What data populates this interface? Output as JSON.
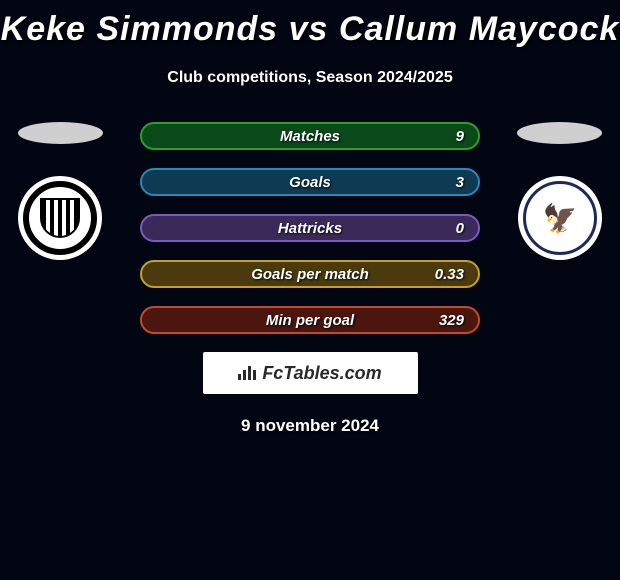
{
  "title": "Keke Simmonds vs Callum Maycock",
  "subtitle": "Club competitions, Season 2024/2025",
  "date": "9 november 2024",
  "fctables_label": "FcTables.com",
  "background_color": "#020612",
  "stats": [
    {
      "label": "Matches",
      "value": "9",
      "fill": "#0a4a1a",
      "border": "#2aa02a"
    },
    {
      "label": "Goals",
      "value": "3",
      "fill": "#0e3a52",
      "border": "#2a88bb"
    },
    {
      "label": "Hattricks",
      "value": "0",
      "fill": "#3a2a5a",
      "border": "#7a5abb"
    },
    {
      "label": "Goals per match",
      "value": "0.33",
      "fill": "#4a3a0e",
      "border": "#c4a126"
    },
    {
      "label": "Min per goal",
      "value": "329",
      "fill": "#4a160e",
      "border": "#c44a2a"
    }
  ],
  "left_oval_color": "#cfcfcf",
  "right_oval_color": "#cfcfcf",
  "left_club_name": "grimsby-town",
  "right_club_name": "afc-wimbledon"
}
